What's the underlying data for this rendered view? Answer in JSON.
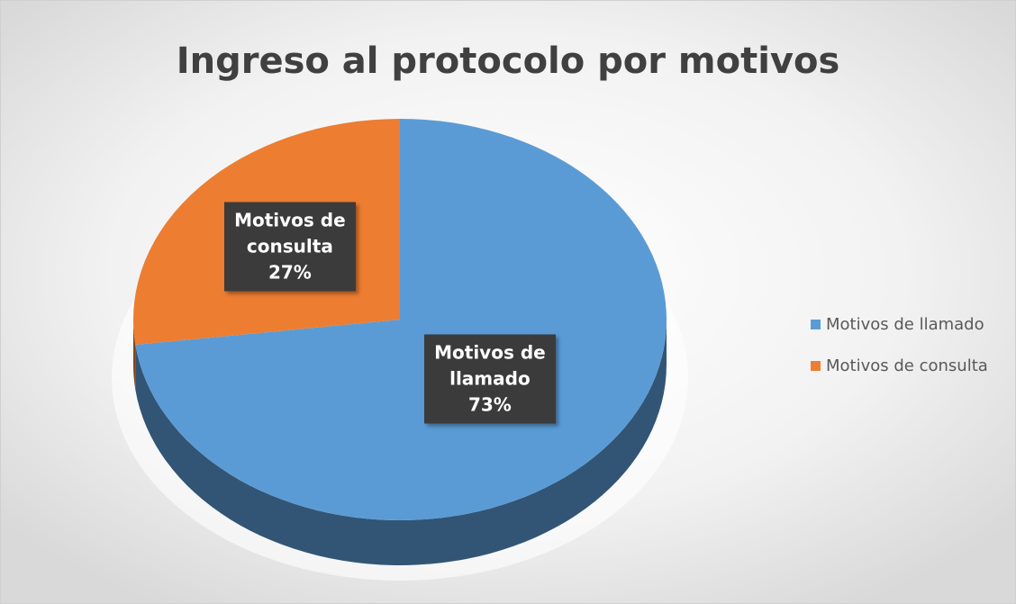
{
  "chart_data": {
    "type": "pie",
    "title": "Ingreso al protocolo por motivos",
    "categories": [
      "Motivos de llamado",
      "Motivos de consulta"
    ],
    "values": [
      73,
      27
    ],
    "value_labels": [
      "73%",
      "27%"
    ],
    "colors": [
      "#5b9bd5",
      "#ed7d31"
    ],
    "legend": "right"
  }
}
